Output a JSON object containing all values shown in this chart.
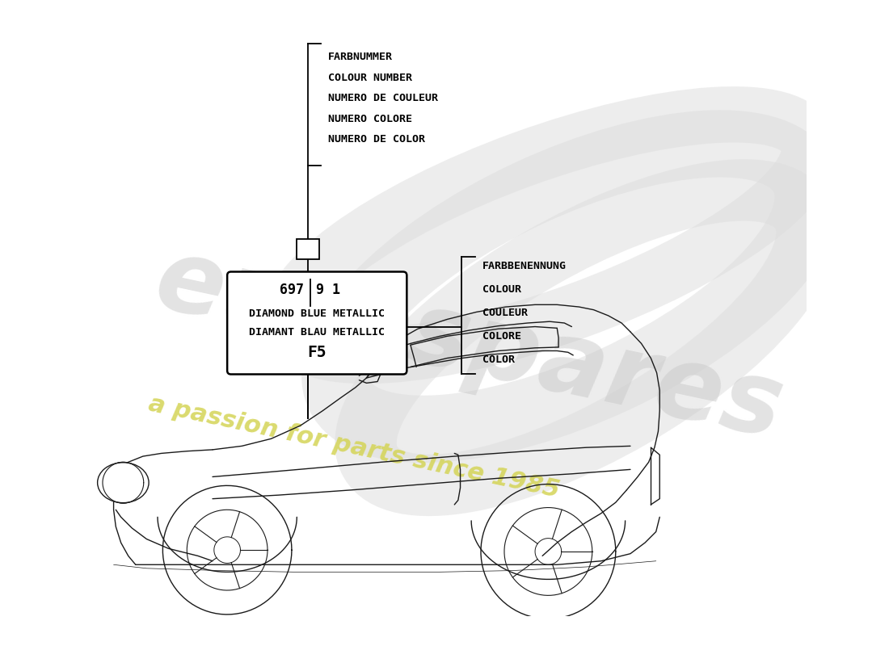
{
  "bg_color": "#ffffff",
  "farbnummer_lines": [
    "FARBNUMMER",
    "COLOUR NUMBER",
    "NUMERO DE COULEUR",
    "NUMERO COLORE",
    "NUMERO DE COLOR"
  ],
  "farbbenennung_lines": [
    "FARBBENENNUNG",
    "COLOUR",
    "COULEUR",
    "COLORE",
    "COLOR"
  ],
  "label_number": "697",
  "label_suffix": "9 1",
  "label_line2": "DIAMOND BLUE METALLIC",
  "label_line3": "DIAMANT BLAU METALLIC",
  "label_line4": "F5",
  "watermark1": "eurospares",
  "watermark2": "a passion for parts since 1985",
  "font_family": "monospace",
  "line_color": "#000000",
  "text_color": "#000000",
  "swirl_color": "#dddddd",
  "watermark1_color": "#c8c8c8",
  "watermark2_color": "#d4d455"
}
